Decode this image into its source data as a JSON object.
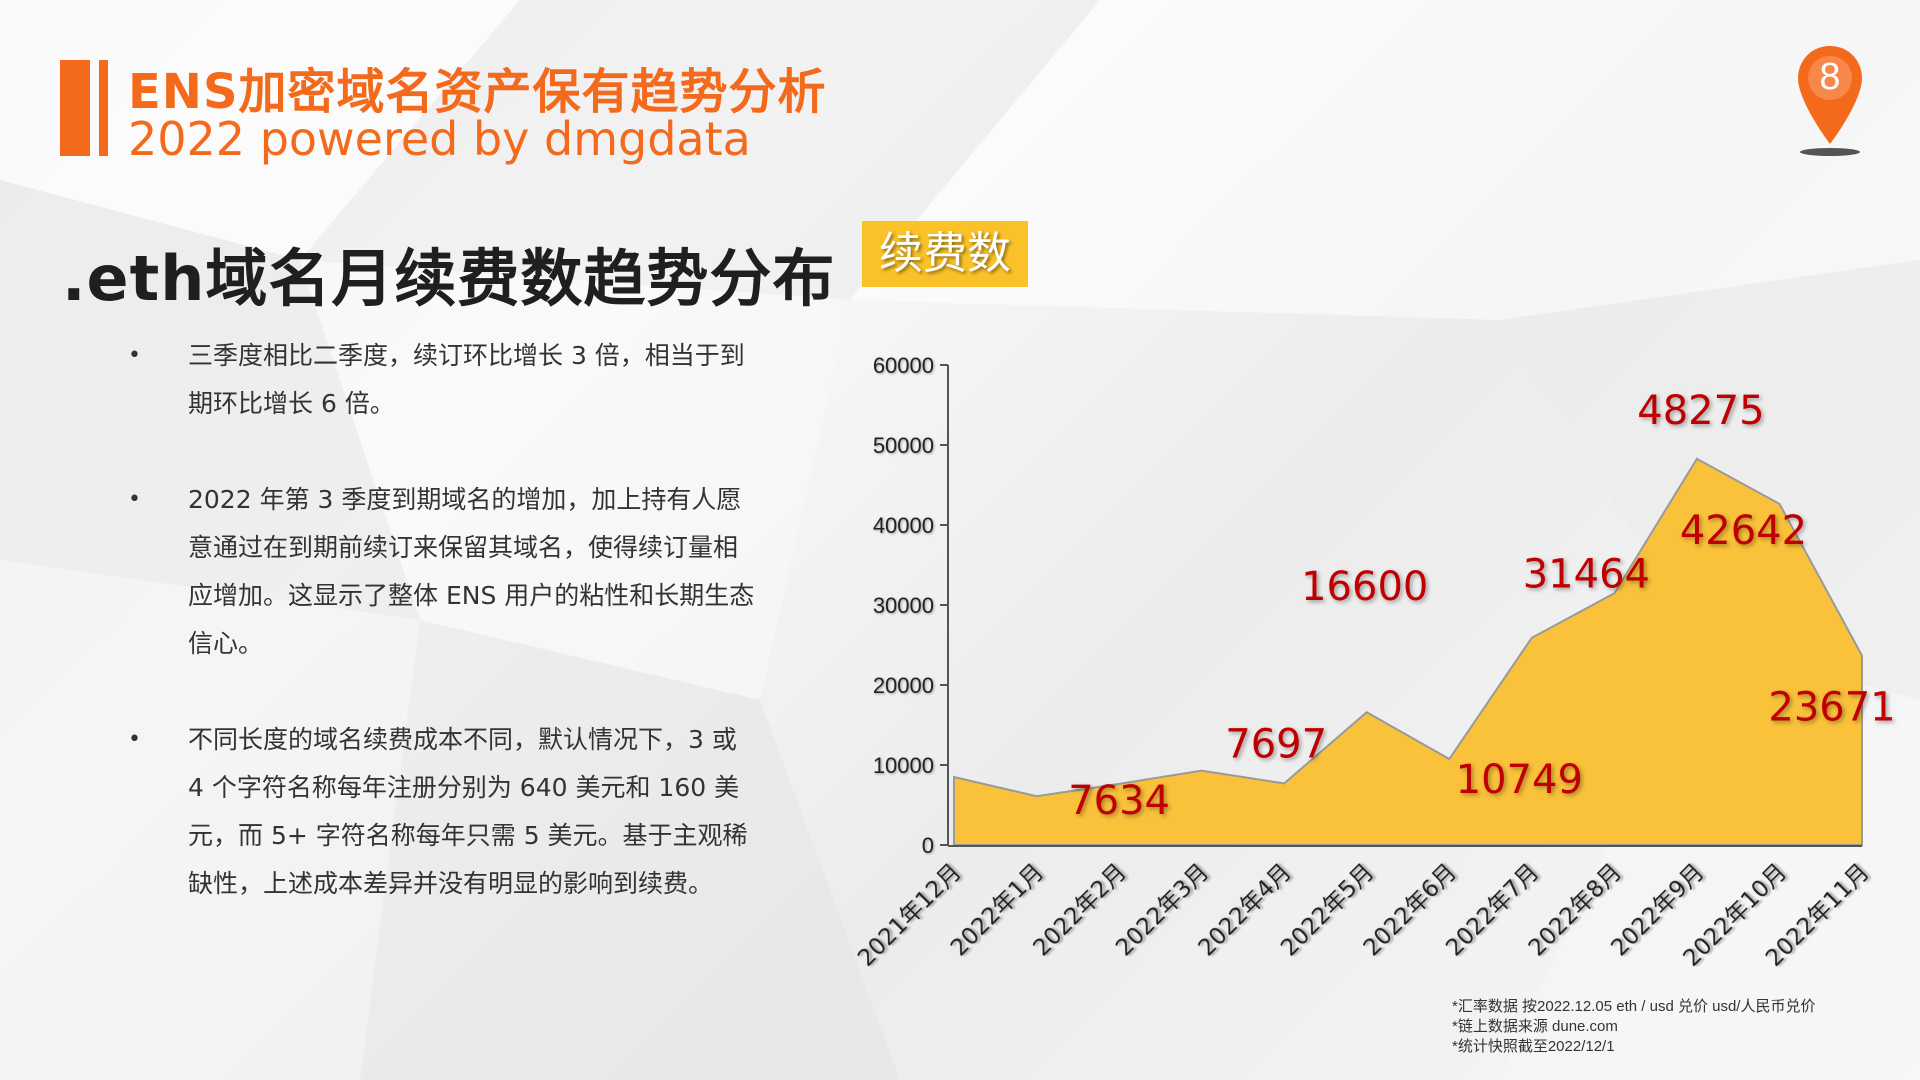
{
  "header": {
    "title": "ENS加密域名资产保有趋势分析",
    "subtitle": "2022 powered by dmgdata",
    "page_number": "8"
  },
  "section": {
    "title": ".eth域名月续费数趋势分布",
    "badge": "续费数"
  },
  "bullets": [
    "三季度相比二季度，续订环比增长 3 倍，相当于到期环比增长 6 倍。",
    "2022 年第 3 季度到期域名的增加，加上持有人愿意通过在到期前续订来保留其域名，使得续订量相应增加。这显示了整体 ENS 用户的粘性和长期生态信心。",
    "不同长度的域名续费成本不同，默认情况下，3 或 4 个字符名称每年注册分别为 640 美元和 160 美元，而 5+ 字符名称每年只需 5 美元。基于主观稀缺性，上述成本差异并没有明显的影响到续费。"
  ],
  "footnotes": [
    "*汇率数据 按2022.12.05 eth / usd 兑价 usd/人民币兑价",
    "*链上数据来源 dune.com",
    "*统计快照截至2022/12/1"
  ],
  "colors": {
    "accent": "#f46a1d",
    "area_fill": "#fac23a",
    "data_label": "#c00000"
  },
  "chart_data": {
    "type": "area",
    "categories": [
      "2021年12月",
      "2022年1月",
      "2022年2月",
      "2022年3月",
      "2022年4月",
      "2022年5月",
      "2022年6月",
      "2022年7月",
      "2022年8月",
      "2022年9月",
      "2022年10月",
      "2022年11月"
    ],
    "series": [
      {
        "values": [
          8500,
          6100,
          7634,
          9300,
          7697,
          16600,
          10749,
          25900,
          31464,
          48275,
          42642,
          23671
        ]
      }
    ],
    "data_labels": [
      {
        "index": 2,
        "text": "7634"
      },
      {
        "index": 4,
        "text": "7697"
      },
      {
        "index": 5,
        "text": "16600"
      },
      {
        "index": 6,
        "text": "10749"
      },
      {
        "index": 8,
        "text": "31464"
      },
      {
        "index": 9,
        "text": "48275"
      },
      {
        "index": 10,
        "text": "42642"
      },
      {
        "index": 11,
        "text": "23671"
      }
    ],
    "y_ticks": [
      "0",
      "10000",
      "20000",
      "30000",
      "40000",
      "50000",
      "60000"
    ],
    "ylim": [
      0,
      60000
    ],
    "grid": false,
    "legend": "none"
  }
}
